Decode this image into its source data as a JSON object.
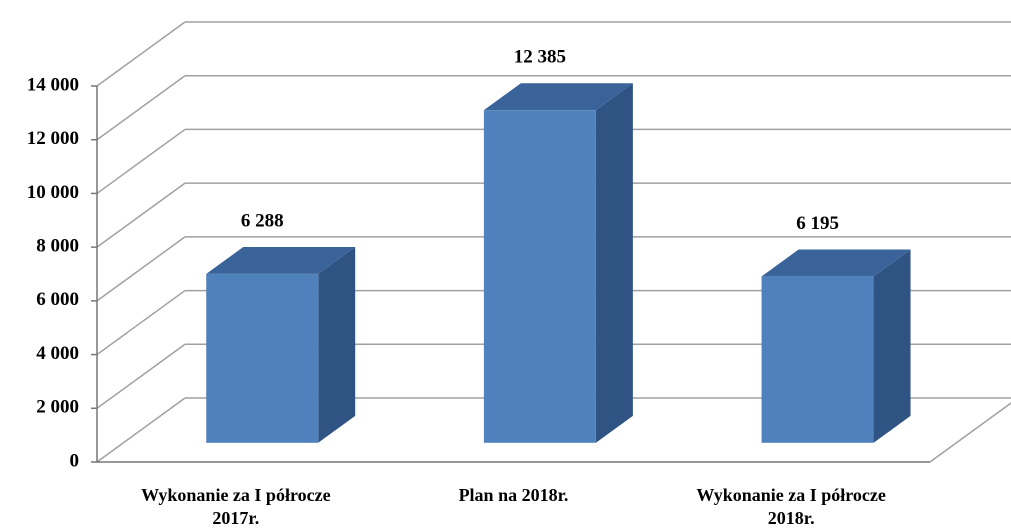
{
  "chart_data": {
    "type": "bar3d",
    "categories": [
      "Wykonanie za I półrocze 2017r.",
      "Plan na 2018r.",
      "Wykonanie za I półrocze 2018r."
    ],
    "values": [
      6288,
      12385,
      6195
    ],
    "value_labels": [
      "6 288",
      "12 385",
      "6 195"
    ],
    "color": "#4f81bd",
    "ylim": [
      0,
      14000
    ],
    "yticks": [
      0,
      {
        "value": 2000,
        "label": "2 000"
      },
      {
        "value": 4000,
        "label": "4 000"
      },
      {
        "value": 6000,
        "label": "6 000"
      },
      {
        "value": 8000,
        "label": "8 000"
      },
      {
        "value": 10000,
        "label": "10 000"
      },
      {
        "value": 12000,
        "label": "12 000"
      },
      {
        "value": 14000,
        "label": "14 000"
      }
    ],
    "grid": true
  }
}
